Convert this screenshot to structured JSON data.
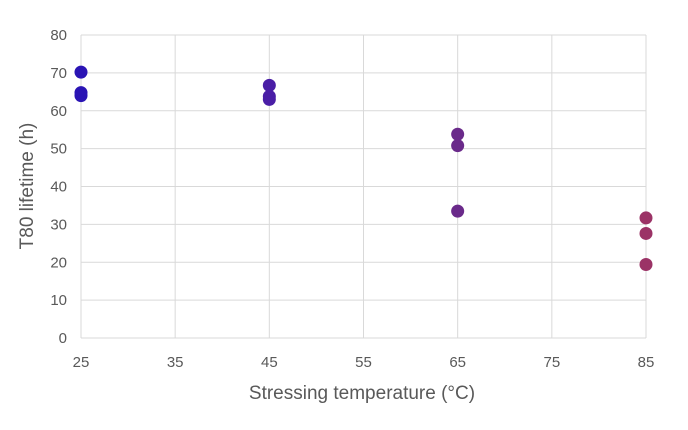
{
  "chart_data": {
    "type": "scatter",
    "title": "",
    "xlabel": "Stressing temperature (°C)",
    "ylabel": "T80 lifetime (h)",
    "xlim": [
      25,
      85
    ],
    "ylim": [
      0,
      80
    ],
    "xticks": [
      "25",
      "35",
      "45",
      "55",
      "65",
      "75",
      "85"
    ],
    "yticks": [
      "0",
      "10",
      "20",
      "30",
      "40",
      "50",
      "60",
      "70",
      "80"
    ],
    "grid": true,
    "legend": "none",
    "points": [
      {
        "x": 25,
        "y": 70.2,
        "color": "#2a14b4"
      },
      {
        "x": 25,
        "y": 64.8,
        "color": "#2a14b4"
      },
      {
        "x": 25,
        "y": 64.0,
        "color": "#2a14b4"
      },
      {
        "x": 45,
        "y": 66.7,
        "color": "#4a1ea6"
      },
      {
        "x": 45,
        "y": 63.8,
        "color": "#4a1ea6"
      },
      {
        "x": 45,
        "y": 63.0,
        "color": "#4a1ea6"
      },
      {
        "x": 65,
        "y": 53.8,
        "color": "#6a2a8a"
      },
      {
        "x": 65,
        "y": 50.8,
        "color": "#6a2a8a"
      },
      {
        "x": 65,
        "y": 33.5,
        "color": "#6a2a8a"
      },
      {
        "x": 85,
        "y": 31.7,
        "color": "#9b3366"
      },
      {
        "x": 85,
        "y": 27.6,
        "color": "#9b3366"
      },
      {
        "x": 85,
        "y": 19.4,
        "color": "#9b3366"
      }
    ]
  }
}
